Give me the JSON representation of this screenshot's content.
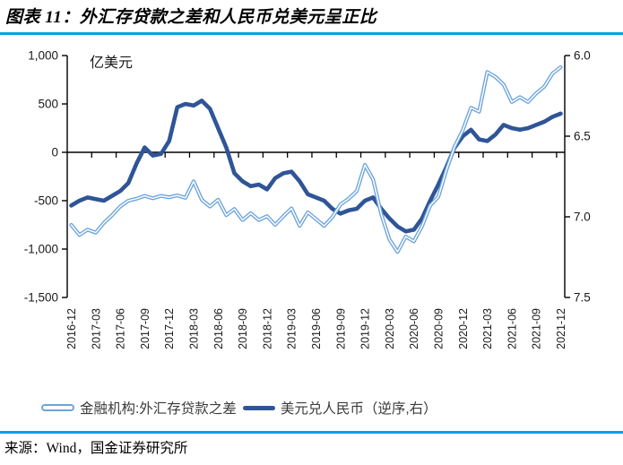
{
  "header": {
    "title": "图表 11：外汇存贷款之差和人民币兑美元呈正比"
  },
  "footer": {
    "source": "来源：Wind，国金证券研究所"
  },
  "colors": {
    "rule": "#00A2E3",
    "axis": "#000000"
  },
  "chart_data": {
    "type": "line",
    "title": "图表 11：外汇存贷款之差和人民币兑美元呈正比",
    "unit_label": "亿美元",
    "x_start": "2016-12",
    "x_frequency": "monthly",
    "x_tick_labels": [
      "2016-12",
      "2017-03",
      "2017-06",
      "2017-09",
      "2017-12",
      "2018-03",
      "2018-06",
      "2018-09",
      "2018-12",
      "2019-03",
      "2019-06",
      "2019-09",
      "2019-12",
      "2020-03",
      "2020-06",
      "2020-09",
      "2020-12",
      "2021-03",
      "2021-06",
      "2021-09",
      "2021-12"
    ],
    "left_axis": {
      "max": 1000,
      "min": -1500,
      "tick_values": [
        1000,
        500,
        0,
        -500,
        -1000,
        -1500
      ],
      "tick_labels": [
        "1,000",
        "500",
        "0",
        "-500",
        "-1,000",
        "-1,500"
      ]
    },
    "right_axis": {
      "min": 6.0,
      "max": 7.5,
      "inverted": true,
      "tick_values": [
        6.0,
        6.5,
        7.0,
        7.5
      ],
      "tick_labels": [
        "6.0",
        "6.5",
        "7.0",
        "7.5"
      ]
    },
    "legend_position": "bottom",
    "series": [
      {
        "name": "金融机构:外汇存贷款之差",
        "axis": "left",
        "style": "outline",
        "color": "#6CA4DC",
        "values": [
          -750,
          -855,
          -800,
          -830,
          -730,
          -650,
          -560,
          -500,
          -480,
          -450,
          -475,
          -450,
          -465,
          -445,
          -470,
          -300,
          -490,
          -560,
          -490,
          -650,
          -585,
          -700,
          -630,
          -700,
          -660,
          -750,
          -660,
          -580,
          -760,
          -620,
          -690,
          -760,
          -670,
          -540,
          -480,
          -400,
          -130,
          -280,
          -640,
          -900,
          -1030,
          -870,
          -920,
          -765,
          -550,
          -460,
          -180,
          60,
          230,
          460,
          420,
          830,
          780,
          700,
          520,
          570,
          520,
          610,
          680,
          815,
          880
        ]
      },
      {
        "name": "美元兑人民币（逆序,右）",
        "axis": "right",
        "style": "solid",
        "color": "#2F5597",
        "values": [
          6.93,
          6.9,
          6.88,
          6.89,
          6.9,
          6.87,
          6.84,
          6.79,
          6.67,
          6.57,
          6.62,
          6.61,
          6.53,
          6.32,
          6.3,
          6.31,
          6.28,
          6.33,
          6.45,
          6.57,
          6.73,
          6.78,
          6.81,
          6.8,
          6.83,
          6.76,
          6.73,
          6.72,
          6.78,
          6.86,
          6.88,
          6.9,
          6.95,
          6.98,
          6.96,
          6.95,
          6.9,
          6.88,
          6.95,
          7.01,
          7.06,
          7.09,
          7.08,
          7.01,
          6.9,
          6.8,
          6.69,
          6.57,
          6.5,
          6.46,
          6.52,
          6.53,
          6.49,
          6.43,
          6.45,
          6.46,
          6.45,
          6.43,
          6.41,
          6.38,
          6.36
        ]
      }
    ]
  }
}
